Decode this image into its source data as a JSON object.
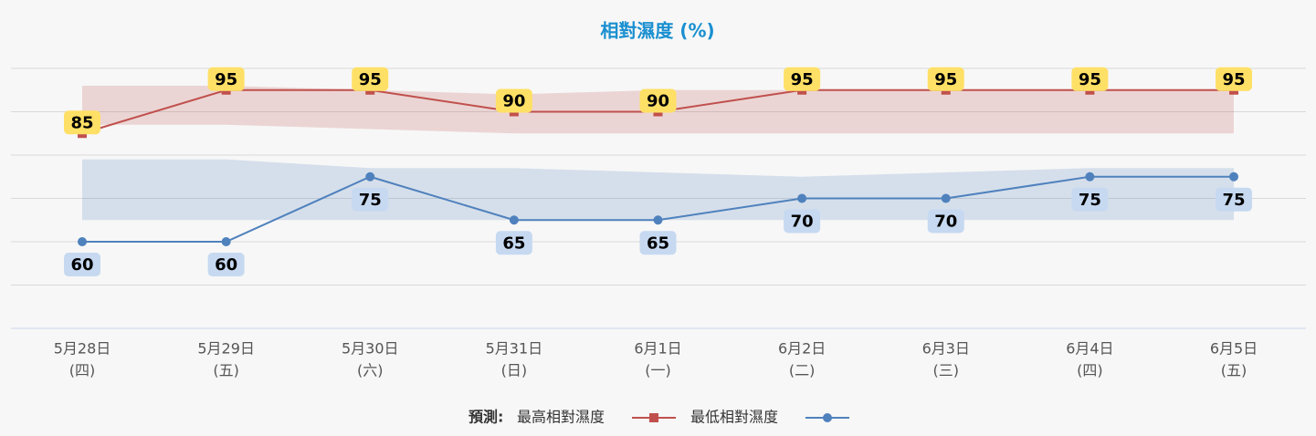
{
  "chart_data": {
    "type": "line",
    "title": "相對濕度 (%)",
    "categories": [
      "5月28日",
      "5月29日",
      "5月30日",
      "5月31日",
      "6月1日",
      "6月2日",
      "6月3日",
      "6月4日",
      "6月5日"
    ],
    "weekdays": [
      "(四)",
      "(五)",
      "(六)",
      "(日)",
      "(一)",
      "(二)",
      "(三)",
      "(四)",
      "(五)"
    ],
    "legend_prefix": "預測:",
    "series": [
      {
        "name": "最高相對濕度",
        "color": "#c0504d",
        "marker": "square",
        "label_color": "#ffe066",
        "values": [
          85,
          95,
          95,
          90,
          90,
          95,
          95,
          95,
          95
        ],
        "range_low": [
          87,
          87,
          86,
          85,
          85,
          85,
          85,
          85,
          85
        ],
        "range_high": [
          96,
          96,
          95,
          94,
          95,
          95,
          95,
          95,
          95
        ]
      },
      {
        "name": "最低相對濕度",
        "color": "#4f81bd",
        "marker": "circle",
        "label_color": "#c6d9f1",
        "values": [
          60,
          60,
          75,
          65,
          65,
          70,
          70,
          75,
          75
        ],
        "range_low": [
          65,
          65,
          65,
          65,
          65,
          65,
          65,
          65,
          65
        ],
        "range_high": [
          79,
          79,
          77,
          77,
          76,
          75,
          76,
          77,
          77
        ]
      }
    ],
    "ylim": [
      40,
      100
    ],
    "yticks": [
      40,
      50,
      60,
      70,
      80,
      90,
      100
    ],
    "grid": true
  }
}
